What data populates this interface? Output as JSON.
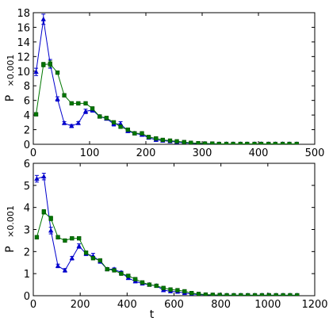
{
  "chart_data": [
    {
      "type": "line",
      "xlabel": "",
      "ylabel": "P",
      "ylabel_multiplier": "×0.001",
      "xlim": [
        0,
        500
      ],
      "ylim": [
        0,
        18
      ],
      "xticks": [
        0,
        100,
        200,
        300,
        400,
        500
      ],
      "yticks": [
        0,
        2,
        4,
        6,
        8,
        10,
        12,
        14,
        16,
        18
      ],
      "grid": false,
      "legend": "none",
      "series": [
        {
          "color": "#0000cc",
          "marker": "triangle",
          "x": [
            5,
            18,
            30,
            43,
            55,
            68,
            80,
            93,
            105,
            118,
            130,
            143,
            155,
            168,
            180,
            193,
            205,
            218,
            230,
            243,
            255,
            268,
            280,
            293,
            305,
            318,
            330,
            343,
            355,
            368,
            380,
            393,
            405,
            418,
            430,
            443,
            455,
            468
          ],
          "values": [
            9.9,
            17.1,
            11.0,
            6.2,
            2.9,
            2.5,
            2.9,
            4.5,
            4.7,
            3.8,
            3.5,
            2.8,
            2.8,
            1.8,
            1.5,
            1.3,
            0.9,
            0.6,
            0.5,
            0.4,
            0.3,
            0.2,
            0.15,
            0.1,
            0.1,
            0.05,
            0.05,
            0.05,
            0.05,
            0.05,
            0.05,
            0.05,
            0.05,
            0.05,
            0.05,
            0.05,
            0.05,
            0.05
          ],
          "errors": [
            0.5,
            0.7,
            0.6,
            0.3,
            0.2,
            0.2,
            0.2,
            0.3,
            0.3,
            0.2,
            0.2,
            0.3,
            0.3,
            0.15,
            0.15,
            0.1,
            0.1,
            0.05,
            0.05,
            0.05,
            0.05,
            0.05,
            0.05,
            0.05,
            0.05,
            0.05,
            0.05,
            0.05,
            0.05,
            0.05,
            0.05,
            0.05,
            0.05,
            0.05,
            0.05,
            0.05,
            0.05,
            0.05
          ]
        },
        {
          "color": "#007700",
          "marker": "square",
          "x": [
            5,
            18,
            30,
            43,
            55,
            68,
            80,
            93,
            105,
            118,
            130,
            143,
            155,
            168,
            180,
            193,
            205,
            218,
            230,
            243,
            255,
            268,
            280,
            293,
            305,
            318,
            330,
            343,
            355,
            368,
            380,
            393,
            405,
            418,
            430,
            443,
            455,
            468
          ],
          "values": [
            4.1,
            10.9,
            11.0,
            9.8,
            6.7,
            5.6,
            5.6,
            5.6,
            4.9,
            3.8,
            3.6,
            3.0,
            2.4,
            2.0,
            1.5,
            1.5,
            1.0,
            0.8,
            0.6,
            0.5,
            0.4,
            0.3,
            0.2,
            0.15,
            0.1,
            0.1,
            0.05,
            0.05,
            0.05,
            0.05,
            0.05,
            0.05,
            0.05,
            0.05,
            0.05,
            0.05,
            0.05,
            0.05
          ],
          "errors": [
            0.2,
            0.3,
            0.4,
            0.2,
            0.2,
            0.15,
            0.15,
            0.15,
            0.15,
            0.1,
            0.1,
            0.1,
            0.1,
            0.1,
            0.05,
            0.05,
            0.05,
            0.05,
            0.05,
            0.05,
            0.05,
            0.05,
            0.05,
            0.05,
            0.05,
            0.05,
            0.05,
            0.05,
            0.05,
            0.05,
            0.05,
            0.05,
            0.05,
            0.05,
            0.05,
            0.05,
            0.05,
            0.05
          ]
        }
      ]
    },
    {
      "type": "line",
      "xlabel": "t",
      "ylabel": "P",
      "ylabel_multiplier": "×0.001",
      "xlim": [
        0,
        1200
      ],
      "ylim": [
        0,
        6
      ],
      "xticks": [
        0,
        200,
        400,
        600,
        800,
        1000,
        1200
      ],
      "yticks": [
        0,
        1,
        2,
        3,
        4,
        5,
        6
      ],
      "grid": false,
      "legend": "none",
      "series": [
        {
          "color": "#0000cc",
          "marker": "triangle",
          "x": [
            15,
            45,
            75,
            105,
            135,
            165,
            195,
            225,
            255,
            285,
            315,
            345,
            375,
            405,
            435,
            465,
            495,
            525,
            555,
            585,
            615,
            645,
            675,
            705,
            735,
            765,
            795,
            825,
            855,
            885,
            915,
            945,
            975,
            1005,
            1035,
            1065,
            1095,
            1125
          ],
          "values": [
            5.3,
            5.4,
            2.95,
            1.35,
            1.15,
            1.7,
            2.25,
            1.9,
            1.8,
            1.55,
            1.2,
            1.2,
            1.05,
            0.8,
            0.65,
            0.55,
            0.5,
            0.45,
            0.25,
            0.2,
            0.18,
            0.12,
            0.08,
            0.05,
            0.04,
            0.03,
            0.03,
            0.02,
            0.02,
            0.02,
            0.02,
            0.02,
            0.02,
            0.02,
            0.02,
            0.02,
            0.02,
            0.02
          ],
          "errors": [
            0.15,
            0.15,
            0.15,
            0.08,
            0.08,
            0.08,
            0.1,
            0.08,
            0.12,
            0.08,
            0.06,
            0.06,
            0.06,
            0.05,
            0.04,
            0.04,
            0.04,
            0.04,
            0.03,
            0.03,
            0.02,
            0.02,
            0.02,
            0.02,
            0.02,
            0.02,
            0.02,
            0.02,
            0.02,
            0.02,
            0.02,
            0.02,
            0.02,
            0.02,
            0.02,
            0.02,
            0.02,
            0.02
          ]
        },
        {
          "color": "#007700",
          "marker": "square",
          "x": [
            15,
            45,
            75,
            105,
            135,
            165,
            195,
            225,
            255,
            285,
            315,
            345,
            375,
            405,
            435,
            465,
            495,
            525,
            555,
            585,
            615,
            645,
            675,
            705,
            735,
            765,
            795,
            825,
            855,
            885,
            915,
            945,
            975,
            1005,
            1035,
            1065,
            1095,
            1125
          ],
          "values": [
            2.65,
            3.8,
            3.5,
            2.65,
            2.5,
            2.6,
            2.6,
            1.95,
            1.7,
            1.6,
            1.2,
            1.15,
            1.0,
            0.9,
            0.75,
            0.6,
            0.5,
            0.45,
            0.35,
            0.28,
            0.25,
            0.2,
            0.12,
            0.08,
            0.05,
            0.04,
            0.03,
            0.02,
            0.02,
            0.02,
            0.02,
            0.02,
            0.02,
            0.02,
            0.02,
            0.02,
            0.02,
            0.02
          ],
          "errors": [
            0.08,
            0.1,
            0.1,
            0.08,
            0.06,
            0.06,
            0.06,
            0.05,
            0.05,
            0.05,
            0.04,
            0.04,
            0.04,
            0.04,
            0.03,
            0.03,
            0.03,
            0.03,
            0.02,
            0.02,
            0.02,
            0.02,
            0.02,
            0.02,
            0.02,
            0.02,
            0.02,
            0.02,
            0.02,
            0.02,
            0.02,
            0.02,
            0.02,
            0.02,
            0.02,
            0.02,
            0.02,
            0.02
          ]
        }
      ]
    }
  ]
}
